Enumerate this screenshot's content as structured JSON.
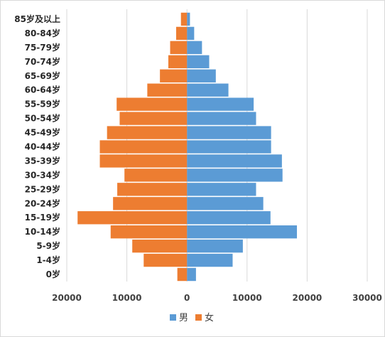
{
  "chart_data": {
    "type": "bar",
    "orientation": "horizontal",
    "title": "",
    "xlabel": "",
    "ylabel": "",
    "categories": [
      "0岁",
      "1-4岁",
      "5-9岁",
      "10-14岁",
      "15-19岁",
      "20-24岁",
      "25-29岁",
      "30-34岁",
      "35-39岁",
      "40-44岁",
      "45-49岁",
      "50-54岁",
      "55-59岁",
      "60-64岁",
      "65-69岁",
      "70-74岁",
      "75-79岁",
      "80-84岁",
      "85岁及以上"
    ],
    "series": [
      {
        "name": "男",
        "color": "#5b9bd5",
        "values": [
          1500,
          7600,
          9300,
          18300,
          13900,
          12700,
          11500,
          15900,
          15800,
          14000,
          14000,
          11500,
          11100,
          6900,
          4800,
          3700,
          2500,
          1200,
          500
        ]
      },
      {
        "name": "女",
        "color": "#ed7d31",
        "values": [
          1600,
          7200,
          9100,
          12700,
          18200,
          12300,
          11600,
          10400,
          14500,
          14500,
          13300,
          11200,
          11700,
          6600,
          4500,
          3100,
          2800,
          1800,
          1000
        ]
      }
    ],
    "xlim": [
      -20000,
      30000
    ],
    "x_ticks": [
      -20000,
      -10000,
      0,
      10000,
      20000,
      30000
    ],
    "x_tick_labels": [
      "20000",
      "10000",
      "0",
      "10000",
      "20000",
      "30000"
    ],
    "grid": "vertical",
    "legend": "bottom-center"
  }
}
